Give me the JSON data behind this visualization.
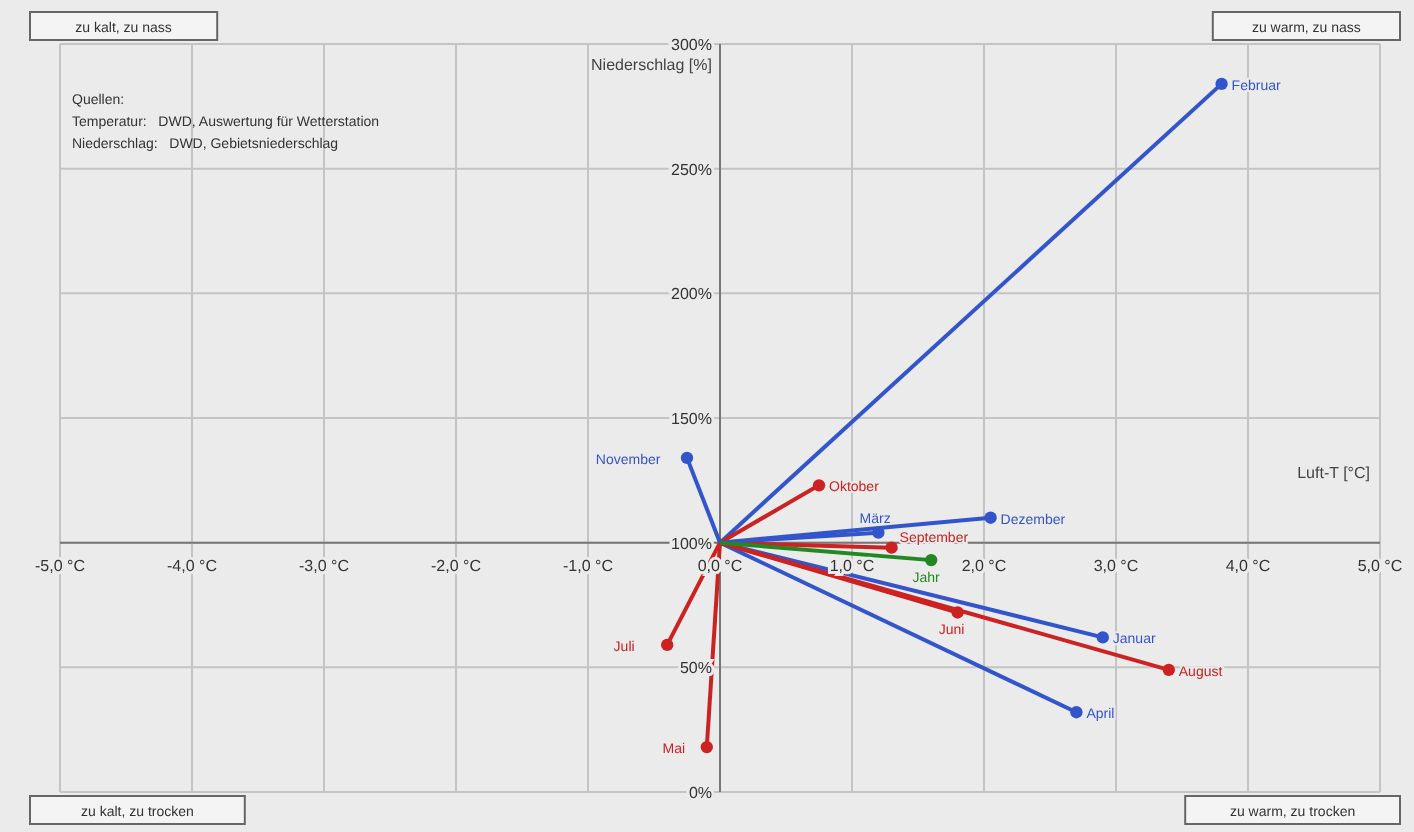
{
  "chart_data": {
    "type": "line",
    "xlabel": "Luft-T [°C]",
    "ylabel": "Niederschlag [%]",
    "marker": "circle",
    "line_style": "solid",
    "grid": true,
    "xlim": [
      -5,
      5
    ],
    "ylim": [
      0,
      300
    ],
    "xticks": [
      {
        "value": -5,
        "label": "-5,0 °C"
      },
      {
        "value": -4,
        "label": "-4,0 °C"
      },
      {
        "value": -3,
        "label": "-3,0 °C"
      },
      {
        "value": -2,
        "label": "-2,0 °C"
      },
      {
        "value": -1,
        "label": "-1,0 °C"
      },
      {
        "value": 0,
        "label": "0,0 °C"
      },
      {
        "value": 1,
        "label": "1,0 °C"
      },
      {
        "value": 2,
        "label": "2,0 °C"
      },
      {
        "value": 3,
        "label": "3,0 °C"
      },
      {
        "value": 4,
        "label": "4,0 °C"
      },
      {
        "value": 5,
        "label": "5,0 °C"
      }
    ],
    "yticks": [
      {
        "value": 0,
        "label": "0%"
      },
      {
        "value": 50,
        "label": "50%"
      },
      {
        "value": 100,
        "label": "100%"
      },
      {
        "value": 150,
        "label": "150%"
      },
      {
        "value": 200,
        "label": "200%"
      },
      {
        "value": 250,
        "label": "250%"
      },
      {
        "value": 300,
        "label": "300%"
      }
    ],
    "series": [
      {
        "name": "Januar",
        "color": "#3355cc",
        "x": [
          0,
          2.9
        ],
        "values": [
          100,
          62
        ]
      },
      {
        "name": "Februar",
        "color": "#3355cc",
        "x": [
          0,
          3.8
        ],
        "values": [
          100,
          284
        ]
      },
      {
        "name": "März",
        "color": "#3355cc",
        "x": [
          0,
          1.2
        ],
        "values": [
          100,
          104
        ]
      },
      {
        "name": "April",
        "color": "#3355cc",
        "x": [
          0,
          2.7
        ],
        "values": [
          100,
          32
        ]
      },
      {
        "name": "Mai",
        "color": "#cc2222",
        "x": [
          0,
          -0.1
        ],
        "values": [
          100,
          18
        ]
      },
      {
        "name": "Juni",
        "color": "#cc2222",
        "x": [
          0,
          1.8
        ],
        "values": [
          100,
          72
        ]
      },
      {
        "name": "Juli",
        "color": "#cc2222",
        "x": [
          0,
          -0.4
        ],
        "values": [
          100,
          59
        ]
      },
      {
        "name": "August",
        "color": "#cc2222",
        "x": [
          0,
          3.4
        ],
        "values": [
          100,
          49
        ]
      },
      {
        "name": "September",
        "color": "#cc2222",
        "x": [
          0,
          1.3
        ],
        "values": [
          100,
          98
        ]
      },
      {
        "name": "Oktober",
        "color": "#cc2222",
        "x": [
          0,
          0.75
        ],
        "values": [
          100,
          123
        ]
      },
      {
        "name": "November",
        "color": "#3355cc",
        "x": [
          0,
          -0.25
        ],
        "values": [
          100,
          134
        ]
      },
      {
        "name": "Dezember",
        "color": "#3355cc",
        "x": [
          0,
          2.05
        ],
        "values": [
          100,
          110
        ]
      },
      {
        "name": "Jahr",
        "color": "#228822",
        "x": [
          0,
          1.6
        ],
        "values": [
          100,
          93
        ]
      }
    ],
    "annotations": [
      "zu kalt, zu nass",
      "zu warm, zu nass",
      "zu kalt, zu trocken",
      "zu warm, zu trocken",
      "Quellen:",
      "Temperatur:   DWD, Auswertung für Wetterstation",
      "Niederschlag:   DWD, Gebietsniederschlag"
    ]
  }
}
